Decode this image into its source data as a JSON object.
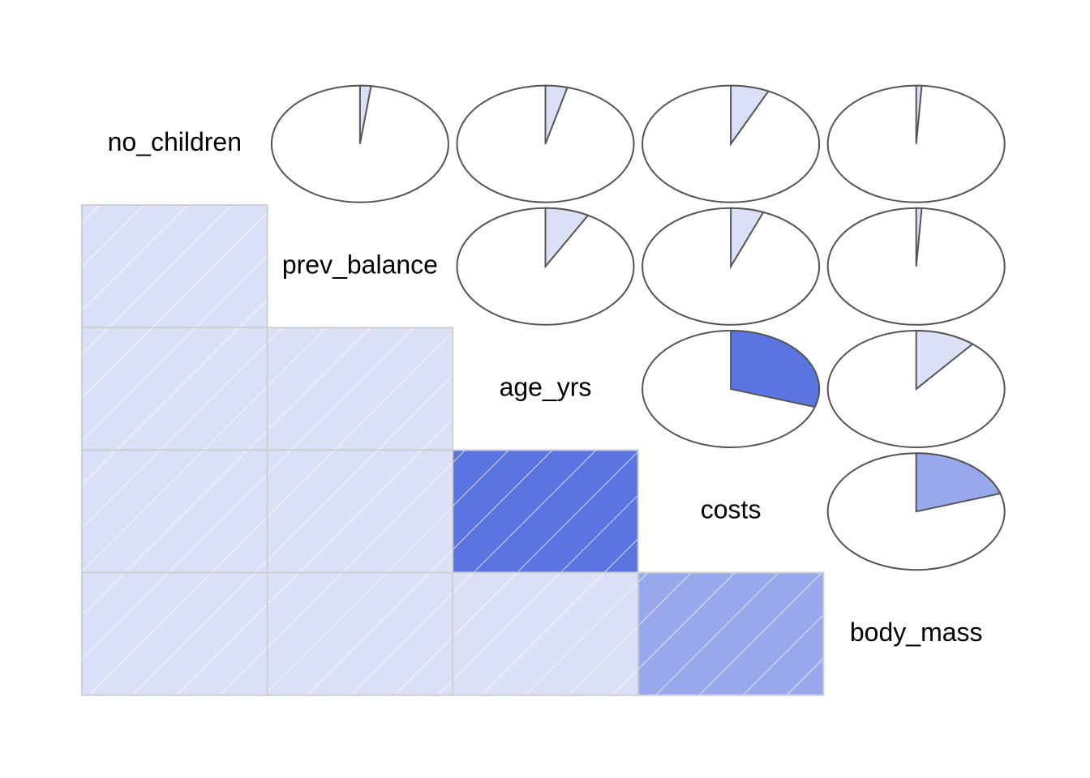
{
  "chart_data": {
    "type": "heatmap",
    "style": "corrgram",
    "upper_panel": "pie",
    "lower_panel": "shade",
    "variables": [
      "no_children",
      "prev_balance",
      "age_yrs",
      "costs",
      "body_mass"
    ],
    "correlations": [
      [
        1.0,
        0.02,
        0.04,
        0.07,
        0.01
      ],
      [
        0.02,
        1.0,
        0.08,
        0.06,
        0.01
      ],
      [
        0.04,
        0.08,
        1.0,
        0.3,
        0.11
      ],
      [
        0.07,
        0.06,
        0.3,
        1.0,
        0.2
      ],
      [
        0.01,
        0.01,
        0.11,
        0.2,
        1.0
      ]
    ],
    "color_scale": {
      "low": "#dbe0f7",
      "mid": "#97a8ec",
      "high": "#5a74e1",
      "outline": "#555555",
      "grid": "#cfcfcf"
    }
  }
}
